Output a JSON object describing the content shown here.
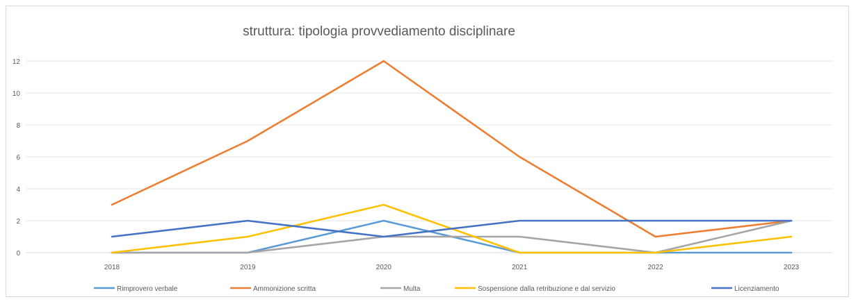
{
  "chart_data": {
    "type": "line",
    "title": "struttura: tipologia provvediamento disciplinare",
    "xlabel": "",
    "ylabel": "",
    "categories": [
      "2018",
      "2019",
      "2020",
      "2021",
      "2022",
      "2023"
    ],
    "ylim": [
      0,
      12
    ],
    "yticks": [
      0,
      2,
      4,
      6,
      8,
      10,
      12
    ],
    "grid": "horizontal",
    "legend": "bottom",
    "series": [
      {
        "name": "Rimprovero verbale",
        "color": "#5b9bd5",
        "values": [
          0,
          0,
          2,
          0,
          0,
          0
        ]
      },
      {
        "name": "Ammonizione scritta",
        "color": "#ed7d31",
        "values": [
          3,
          7,
          12,
          6,
          1,
          2
        ]
      },
      {
        "name": "Multa",
        "color": "#a5a5a5",
        "values": [
          0,
          0,
          1,
          1,
          0,
          2
        ]
      },
      {
        "name": "Sospensione dalla retribuzione e dal servizio",
        "color": "#ffc000",
        "values": [
          0,
          1,
          3,
          0,
          0,
          1
        ]
      },
      {
        "name": "Licenziamento",
        "color": "#4472c4",
        "values": [
          1,
          2,
          1,
          2,
          2,
          2
        ]
      }
    ]
  }
}
